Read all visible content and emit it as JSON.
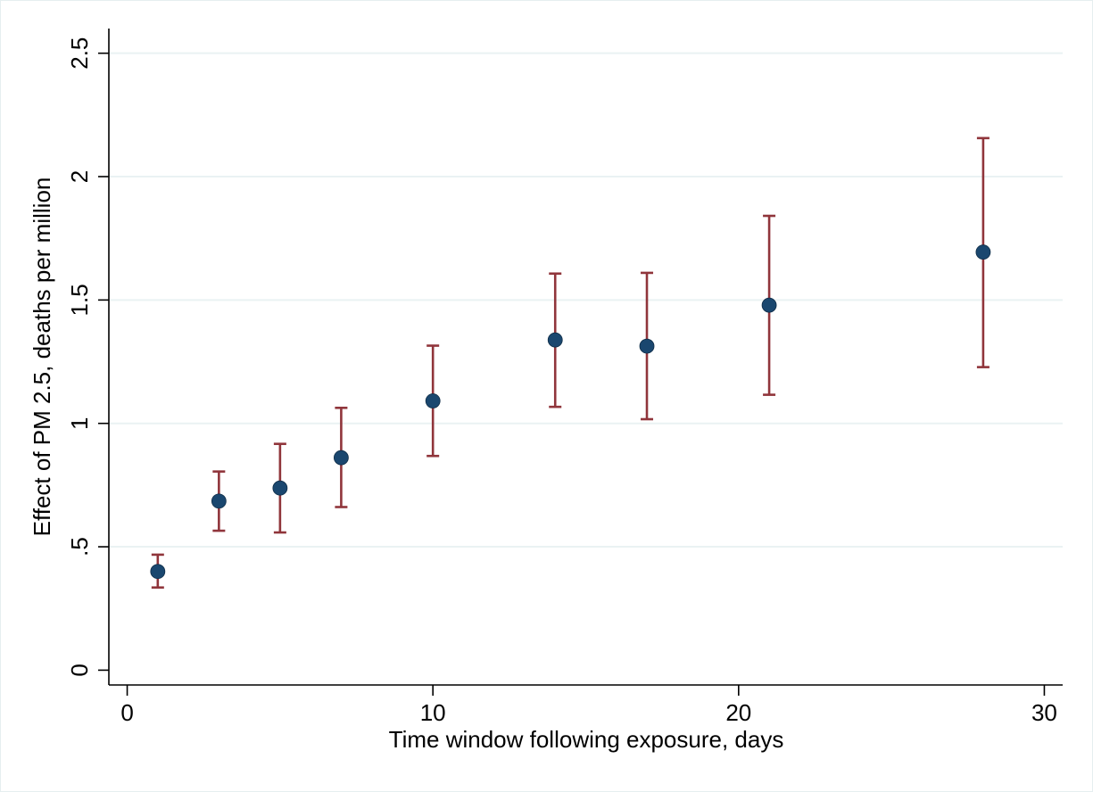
{
  "chart_data": {
    "type": "scatter",
    "title": "",
    "xlabel": "Time window following exposure, days",
    "ylabel": "Effect of PM 2.5, deaths per million",
    "xlim": [
      -0.6,
      30.6
    ],
    "ylim": [
      -0.06,
      2.6
    ],
    "x_ticks": [
      0,
      10,
      20,
      30
    ],
    "x_tick_labels": [
      "0",
      "10",
      "20",
      "30"
    ],
    "y_ticks": [
      0,
      0.5,
      1,
      1.5,
      2,
      2.5
    ],
    "y_tick_labels": [
      "0",
      ".5",
      "1",
      "1.5",
      "2",
      "2.5"
    ],
    "grid": "horizontal",
    "legend": "none",
    "points": [
      {
        "x": 1,
        "y": 0.4,
        "lo": 0.335,
        "hi": 0.468
      },
      {
        "x": 3,
        "y": 0.685,
        "lo": 0.565,
        "hi": 0.805
      },
      {
        "x": 5,
        "y": 0.738,
        "lo": 0.558,
        "hi": 0.917
      },
      {
        "x": 7,
        "y": 0.861,
        "lo": 0.661,
        "hi": 1.063
      },
      {
        "x": 10,
        "y": 1.091,
        "lo": 0.868,
        "hi": 1.315
      },
      {
        "x": 14,
        "y": 1.338,
        "lo": 1.067,
        "hi": 1.607
      },
      {
        "x": 17,
        "y": 1.313,
        "lo": 1.017,
        "hi": 1.61
      },
      {
        "x": 21,
        "y": 1.479,
        "lo": 1.116,
        "hi": 1.841
      },
      {
        "x": 28,
        "y": 1.694,
        "lo": 1.228,
        "hi": 2.156
      }
    ],
    "colors": {
      "point": "#1a476f",
      "error_bar": "#90353b",
      "grid": "#eaf2f3",
      "axis": "#000000",
      "frame": "#e6eef0"
    }
  }
}
